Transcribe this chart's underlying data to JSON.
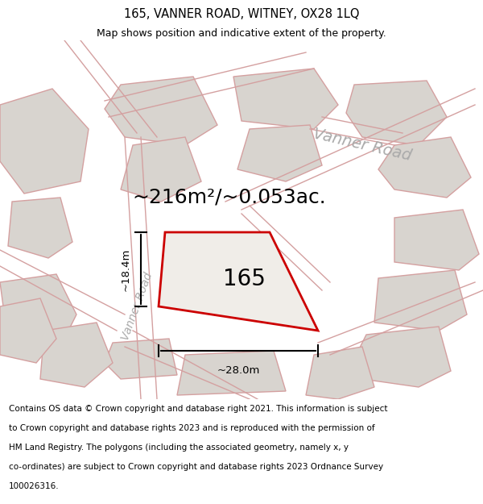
{
  "title": "165, VANNER ROAD, WITNEY, OX28 1LQ",
  "subtitle": "Map shows position and indicative extent of the property.",
  "area_text": "~216m²/~0.053ac.",
  "property_label": "165",
  "road_label_top": "Vanner Road",
  "road_label_left": "Vanner Road",
  "dim_width": "~28.0m",
  "dim_height": "~18.4m",
  "footer_lines": [
    "Contains OS data © Crown copyright and database right 2021. This information is subject",
    "to Crown copyright and database rights 2023 and is reproduced with the permission of",
    "HM Land Registry. The polygons (including the associated geometry, namely x, y",
    "co-ordinates) are subject to Crown copyright and database rights 2023 Ordnance Survey",
    "100026316."
  ],
  "map_bg": "#e8e4df",
  "road_bg": "#e0dbd5",
  "building_fill": "#d8d4cf",
  "building_edge": "#d4a0a0",
  "property_fill": "#f0ede8",
  "property_edge": "#cc0000",
  "title_fontsize": 10.5,
  "subtitle_fontsize": 9,
  "footer_fontsize": 7.5,
  "label_fontsize": 20,
  "area_fontsize": 18,
  "road_label_fontsize": 14
}
